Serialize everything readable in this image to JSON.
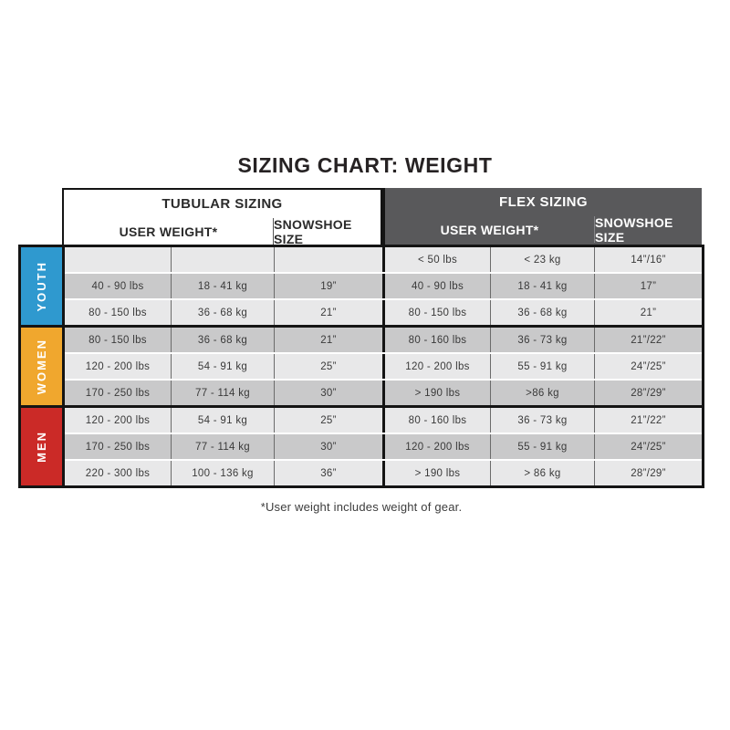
{
  "colors": {
    "youth": "#2f99cf",
    "women": "#f0a72e",
    "men": "#cb2a27",
    "flex_header_bg": "#59595b",
    "row_light": "#e8e8e9",
    "row_dark": "#c9c9ca",
    "border_black": "#141414"
  },
  "chart_data": {
    "type": "table",
    "title": "SIZING CHART: WEIGHT",
    "footnote": "*User weight includes weight of gear.",
    "column_groups": [
      {
        "label": "TUBULAR SIZING",
        "columns": [
          "USER WEIGHT*",
          "SNOWSHOE SIZE"
        ]
      },
      {
        "label": "FLEX SIZING",
        "columns": [
          "USER WEIGHT*",
          "SNOWSHOE SIZE"
        ]
      }
    ],
    "sections": [
      {
        "label": "YOUTH",
        "color": "#2f99cf",
        "rows": [
          {
            "tubular": [
              "",
              "",
              ""
            ],
            "flex": [
              "< 50 lbs",
              "< 23 kg",
              "14”/16”"
            ]
          },
          {
            "tubular": [
              "40 - 90 lbs",
              "18 - 41 kg",
              "19”"
            ],
            "flex": [
              "40 - 90 lbs",
              "18 - 41 kg",
              "17”"
            ]
          },
          {
            "tubular": [
              "80 - 150 lbs",
              "36 - 68 kg",
              "21”"
            ],
            "flex": [
              "80 - 150 lbs",
              "36 - 68 kg",
              "21”"
            ]
          }
        ]
      },
      {
        "label": "WOMEN",
        "color": "#f0a72e",
        "rows": [
          {
            "tubular": [
              "80 - 150 lbs",
              "36 - 68 kg",
              "21”"
            ],
            "flex": [
              "80 - 160 lbs",
              "36 - 73 kg",
              "21”/22”"
            ]
          },
          {
            "tubular": [
              "120 - 200 lbs",
              "54 - 91 kg",
              "25”"
            ],
            "flex": [
              "120 - 200 lbs",
              "55 - 91 kg",
              "24”/25”"
            ]
          },
          {
            "tubular": [
              "170 - 250 lbs",
              "77 - 114 kg",
              "30”"
            ],
            "flex": [
              "> 190 lbs",
              ">86 kg",
              "28”/29”"
            ]
          }
        ]
      },
      {
        "label": "MEN",
        "color": "#cb2a27",
        "rows": [
          {
            "tubular": [
              "120 - 200 lbs",
              "54 - 91 kg",
              "25”"
            ],
            "flex": [
              "80 - 160 lbs",
              "36 - 73 kg",
              "21”/22”"
            ]
          },
          {
            "tubular": [
              "170 - 250 lbs",
              "77 - 114 kg",
              "30”"
            ],
            "flex": [
              "120 - 200 lbs",
              "55 - 91 kg",
              "24”/25”"
            ]
          },
          {
            "tubular": [
              "220 - 300 lbs",
              "100 - 136 kg",
              "36”"
            ],
            "flex": [
              "> 190 lbs",
              "> 86 kg",
              "28”/29”"
            ]
          }
        ]
      }
    ]
  }
}
